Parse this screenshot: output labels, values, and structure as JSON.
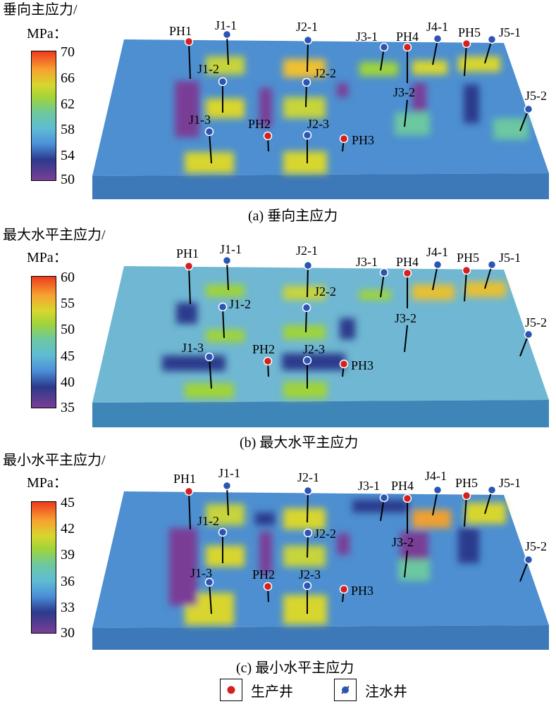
{
  "panels": [
    {
      "title_line1": "垂向主应力/",
      "title_line2": "MPa：",
      "ticks": [
        "70",
        "66",
        "62",
        "58",
        "54",
        "50"
      ],
      "caption": "(a) 垂向主应力"
    },
    {
      "title_line1": "最大水平主应力/",
      "title_line2": "MPa：",
      "ticks": [
        "60",
        "55",
        "50",
        "45",
        "40",
        "35"
      ],
      "caption": "(b) 最大水平主应力"
    },
    {
      "title_line1": "最小水平主应力/",
      "title_line2": "MPa：",
      "ticks": [
        "45",
        "42",
        "39",
        "36",
        "33",
        "30"
      ],
      "caption": "(c) 最小水平主应力"
    }
  ],
  "well_labels": {
    "PH1": "PH1",
    "PH2": "PH2",
    "PH3": "PH3",
    "PH4": "PH4",
    "PH5": "PH5",
    "J1-1": "J1-1",
    "J1-2": "J1-2",
    "J1-3": "J1-3",
    "J2-1": "J2-1",
    "J2-2": "J2-2",
    "J2-3": "J2-3",
    "J3-1": "J3-1",
    "J3-2": "J3-2",
    "J4-1": "J4-1",
    "J5-1": "J5-1",
    "J5-2": "J5-2"
  },
  "legend": {
    "producer_label": "生产井",
    "injector_label": "注水井"
  },
  "colors": {
    "colormap": [
      "#ee3a1e",
      "#f7a130",
      "#d8d62e",
      "#9fd43a",
      "#6cc8a0",
      "#5fbcd3",
      "#4b8fd8",
      "#2c3a8c",
      "#7a3e96"
    ],
    "producer": "#d42020",
    "injector": "#2a55b4"
  }
}
